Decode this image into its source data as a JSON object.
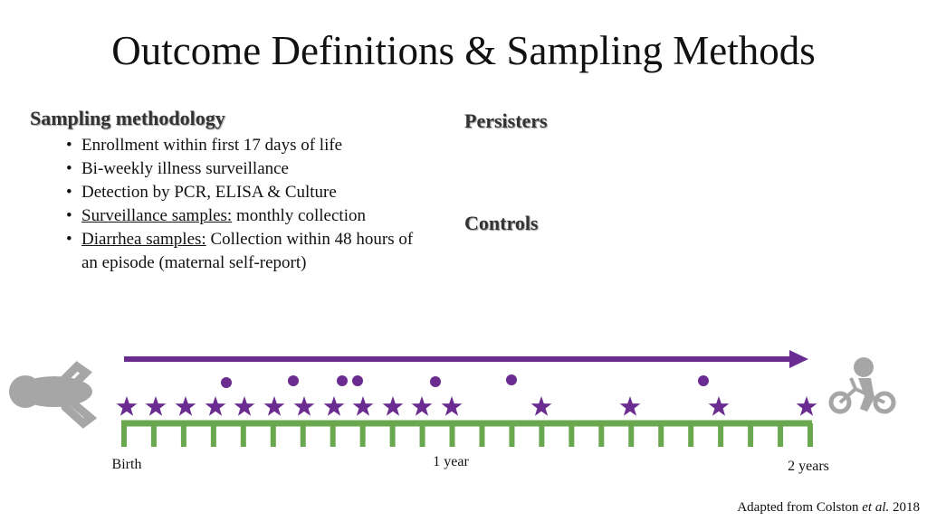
{
  "title": "Outcome Definitions & Sampling Methods",
  "left": {
    "heading": "Sampling methodology",
    "bullets": [
      {
        "text": "Enrollment within first 17 days of life"
      },
      {
        "text": "Bi-weekly illness surveillance"
      },
      {
        "text": "Detection by PCR, ELISA & Culture"
      },
      {
        "underline": "Surveillance samples:",
        "text": "monthly collection"
      },
      {
        "underline": "Diarrhea samples:",
        "text": "Collection within 48 hours of an episode (maternal self-report)"
      }
    ]
  },
  "right": {
    "headings": [
      "Persisters",
      "Controls"
    ]
  },
  "timeline": {
    "labels": [
      "Birth",
      "1 year",
      "2 years"
    ]
  },
  "citation": {
    "before": "Adapted from Colston",
    "italic": "et al.",
    "after": "2018"
  }
}
